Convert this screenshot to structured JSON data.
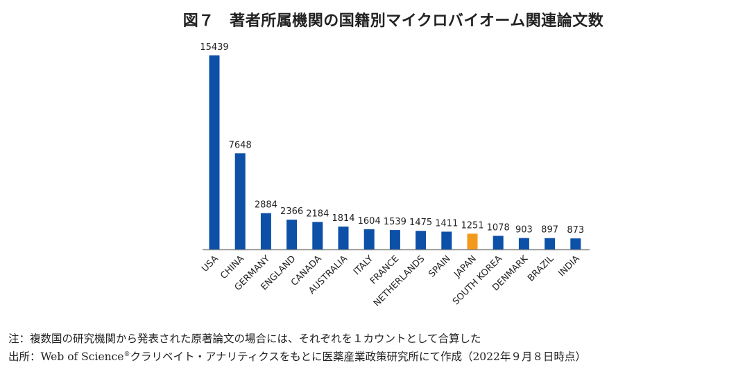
{
  "chart_data": {
    "type": "bar",
    "title": "図７　著者所属機関の国籍別マイクロバイオーム関連論文数",
    "categories": [
      "USA",
      "CHINA",
      "GERMANY",
      "ENGLAND",
      "CANADA",
      "AUSTRALIA",
      "ITALY",
      "FRANCE",
      "NETHERLANDS",
      "SPAIN",
      "JAPAN",
      "SOUTH KOREA",
      "DENMARK",
      "BRAZIL",
      "INDIA"
    ],
    "values": [
      15439,
      7648,
      2884,
      2366,
      2184,
      1814,
      1604,
      1539,
      1475,
      1411,
      1251,
      1078,
      903,
      897,
      873
    ],
    "xlabel": "",
    "ylabel": "",
    "ylim": [
      0,
      15439
    ],
    "grid": false,
    "legend": "none",
    "data_labels": true,
    "colors": {
      "default": "#0c50a8",
      "highlight": "#f39a1e",
      "highlight_category": "JAPAN",
      "axis": "#888888"
    }
  },
  "notes": {
    "note": "注：複数国の研究機関から発表された原著論文の場合には、それぞれを１カウントとして合算した",
    "source_prefix": "出所：Web of Science",
    "source_mark": "®",
    "source_suffix": "クラリベイト・アナリティクスをもとに医薬産業政策研究所にて作成（2022年９月８日時点）"
  }
}
